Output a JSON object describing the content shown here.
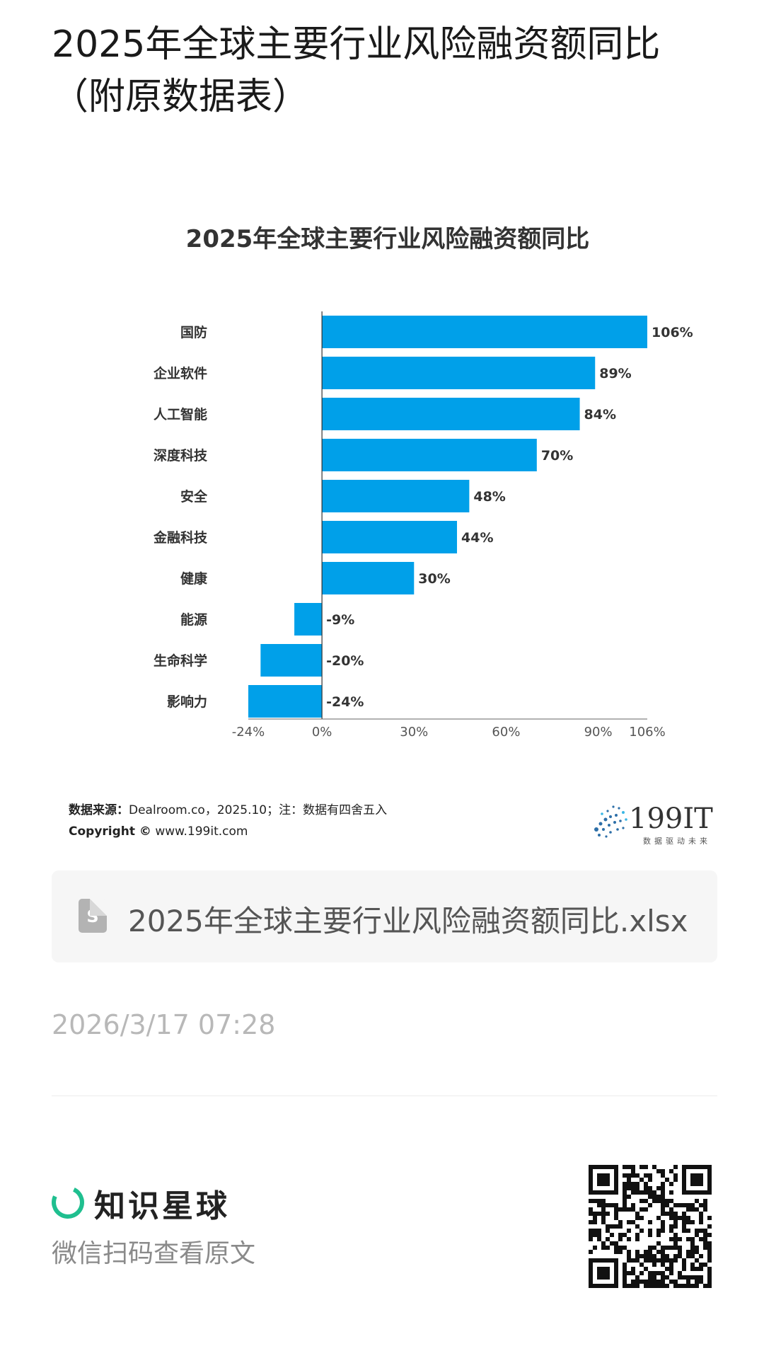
{
  "page": {
    "title": "2025年全球主要行业风险融资额同比（附原数据表）"
  },
  "chart_data": {
    "type": "bar",
    "orientation": "horizontal",
    "title": "2025年全球主要行业风险融资额同比",
    "categories": [
      "国防",
      "企业软件",
      "人工智能",
      "深度科技",
      "安全",
      "金融科技",
      "健康",
      "能源",
      "生命科学",
      "影响力"
    ],
    "values": [
      106,
      89,
      84,
      70,
      48,
      44,
      30,
      -9,
      -20,
      -24
    ],
    "value_labels": [
      "106%",
      "89%",
      "84%",
      "70%",
      "48%",
      "44%",
      "30%",
      "-9%",
      "-20%",
      "-24%"
    ],
    "xlim": [
      -24,
      106
    ],
    "x_ticks": [
      -24,
      0,
      30,
      60,
      90,
      106
    ],
    "x_tick_labels": [
      "-24%",
      "0%",
      "30%",
      "60%",
      "90%",
      "106%"
    ],
    "xlabel": "",
    "ylabel": "",
    "grid": false,
    "bar_color": "#00a0e9"
  },
  "chart_footer": {
    "source_label": "数据来源：",
    "source_text": "Dealroom.co，2025.10；注：数据有四舍五入",
    "copyright_label": "Copyright ©",
    "copyright_text": "www.199it.com",
    "logo_text": "199IT",
    "logo_tagline": "数据驱动未来"
  },
  "file": {
    "icon_name": "spreadsheet-file-icon",
    "icon_letter": "S",
    "name": "2025年全球主要行业风险融资额同比.xlsx"
  },
  "meta": {
    "timestamp": "2026/3/17 07:28"
  },
  "footer": {
    "brand_name": "知识星球",
    "brand_color": "#1fbf8f",
    "cta": "微信扫码查看原文"
  }
}
